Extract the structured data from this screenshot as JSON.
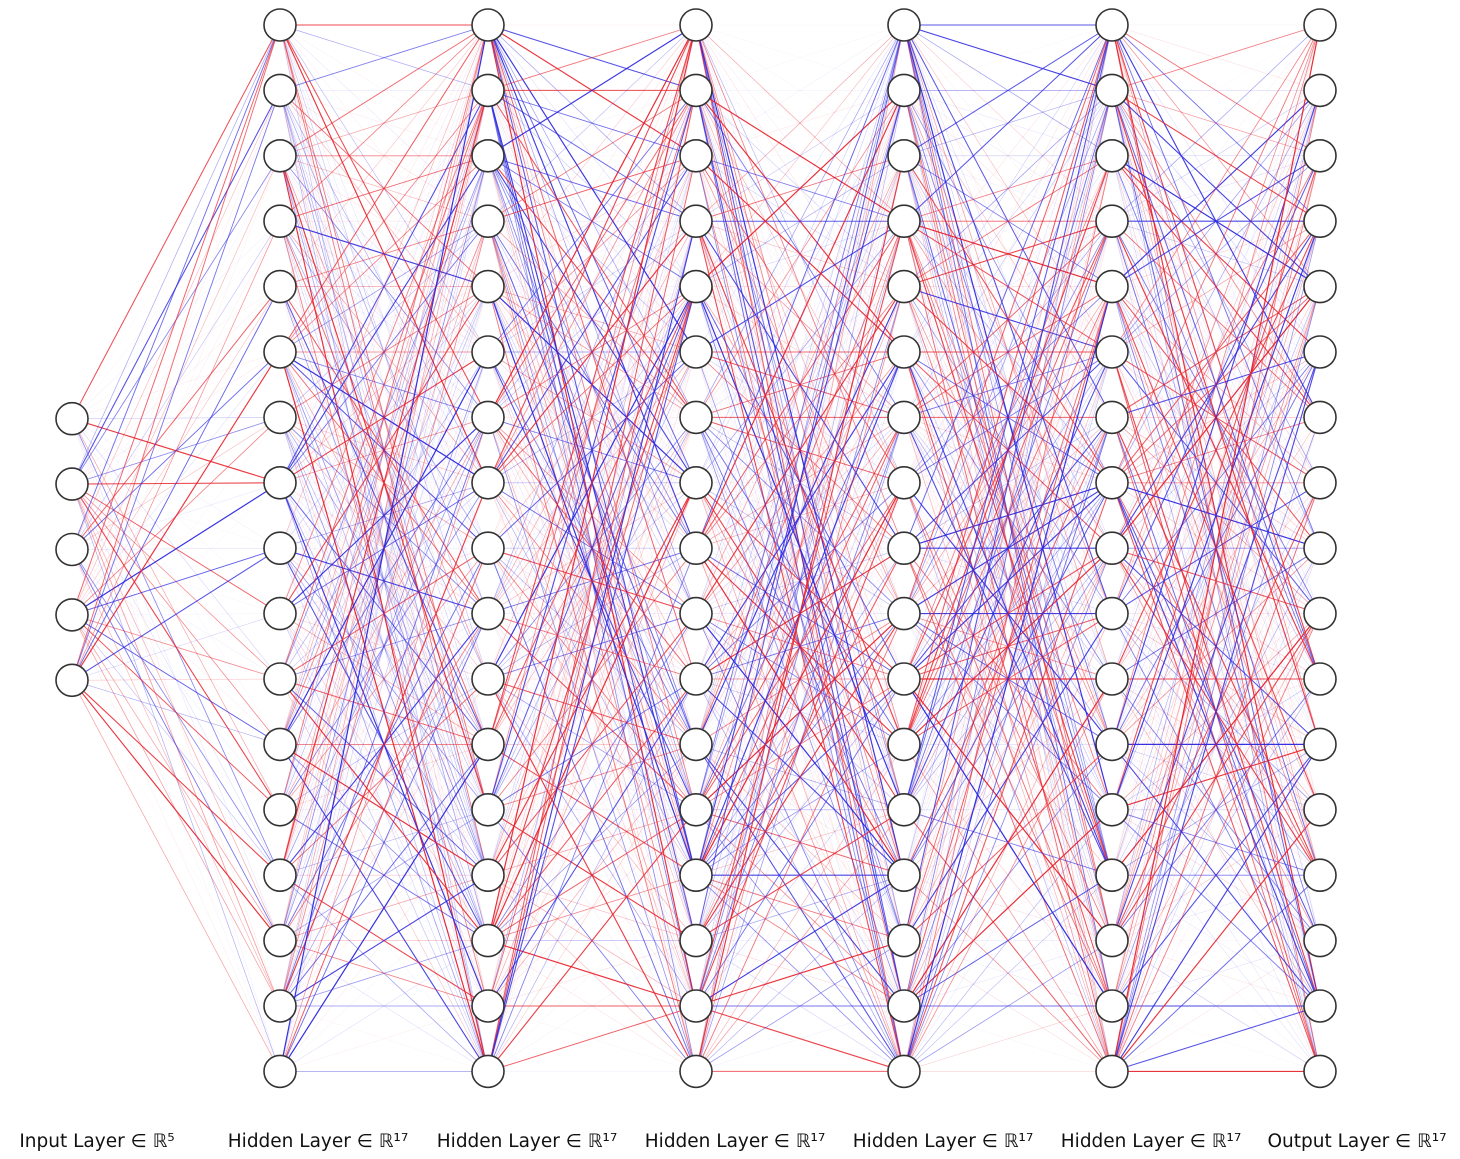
{
  "diagram": {
    "type": "feedforward neural network",
    "edge_colors": {
      "positive": "#e8202a",
      "negative": "#2a26e0"
    },
    "node_stroke_color": "#333333",
    "layers": [
      {
        "label": "Input Layer ∈ ℝ⁵",
        "size": 5
      },
      {
        "label": "Hidden Layer ∈ ℝ¹⁷",
        "size": 17
      },
      {
        "label": "Hidden Layer ∈ ℝ¹⁷",
        "size": 17
      },
      {
        "label": "Hidden Layer ∈ ℝ¹⁷",
        "size": 17
      },
      {
        "label": "Hidden Layer ∈ ℝ¹⁷",
        "size": 17
      },
      {
        "label": "Hidden Layer ∈ ℝ¹⁷",
        "size": 17
      },
      {
        "label": "Output Layer ∈ ℝ¹⁷",
        "size": 17
      }
    ]
  }
}
